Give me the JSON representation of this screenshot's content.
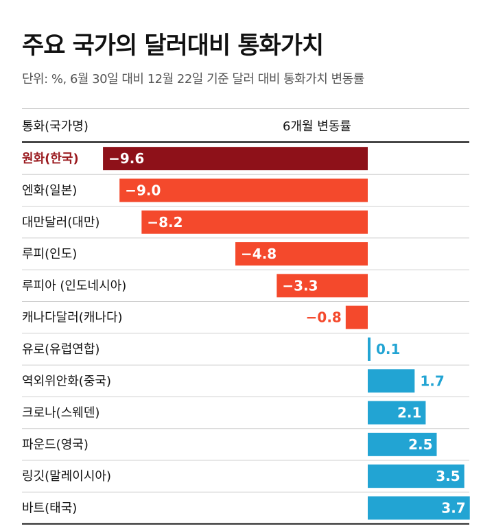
{
  "title": "주요 국가의 달러대비 통화가치",
  "subtitle": "단위: %, 6월 30일 대비 12월 22일 기준 달러 대비 통화가치 변동률",
  "header": {
    "col_label": "통화(국가명)",
    "col_value": "6개월 변동률"
  },
  "colors": {
    "highlight": "#8e1119",
    "negative": "#f4492c",
    "positive": "#22a4d3",
    "highlight_text": "#9a1a1f"
  },
  "chart_data": {
    "type": "bar",
    "orientation": "horizontal",
    "title": "주요 국가의 달러대비 통화가치",
    "subtitle": "단위: %, 6월 30일 대비 12월 22일 기준 달러 대비 통화가치 변동률",
    "xlabel": "6개월 변동률",
    "ylabel": "통화(국가명)",
    "xlim": [
      -9.6,
      3.7
    ],
    "highlight": "원화(한국)",
    "categories": [
      "원화(한국)",
      "엔화(일본)",
      "대만달러(대만)",
      "루피(인도)",
      "루피아 (인도네시아)",
      "캐나다달러(캐나다)",
      "유로(유럽연합)",
      "역외위안화(중국)",
      "크로나(스웨덴)",
      "파운드(영국)",
      "링깃(말레이시아)",
      "바트(태국)"
    ],
    "values": [
      -9.6,
      -9.0,
      -8.2,
      -4.8,
      -3.3,
      -0.8,
      0.1,
      1.7,
      2.1,
      2.5,
      3.5,
      3.7
    ],
    "value_labels": [
      "−9.6",
      "−9.0",
      "−8.2",
      "−4.8",
      "−3.3",
      "−0.8",
      "0.1",
      "1.7",
      "2.1",
      "2.5",
      "3.5",
      "3.7"
    ]
  }
}
